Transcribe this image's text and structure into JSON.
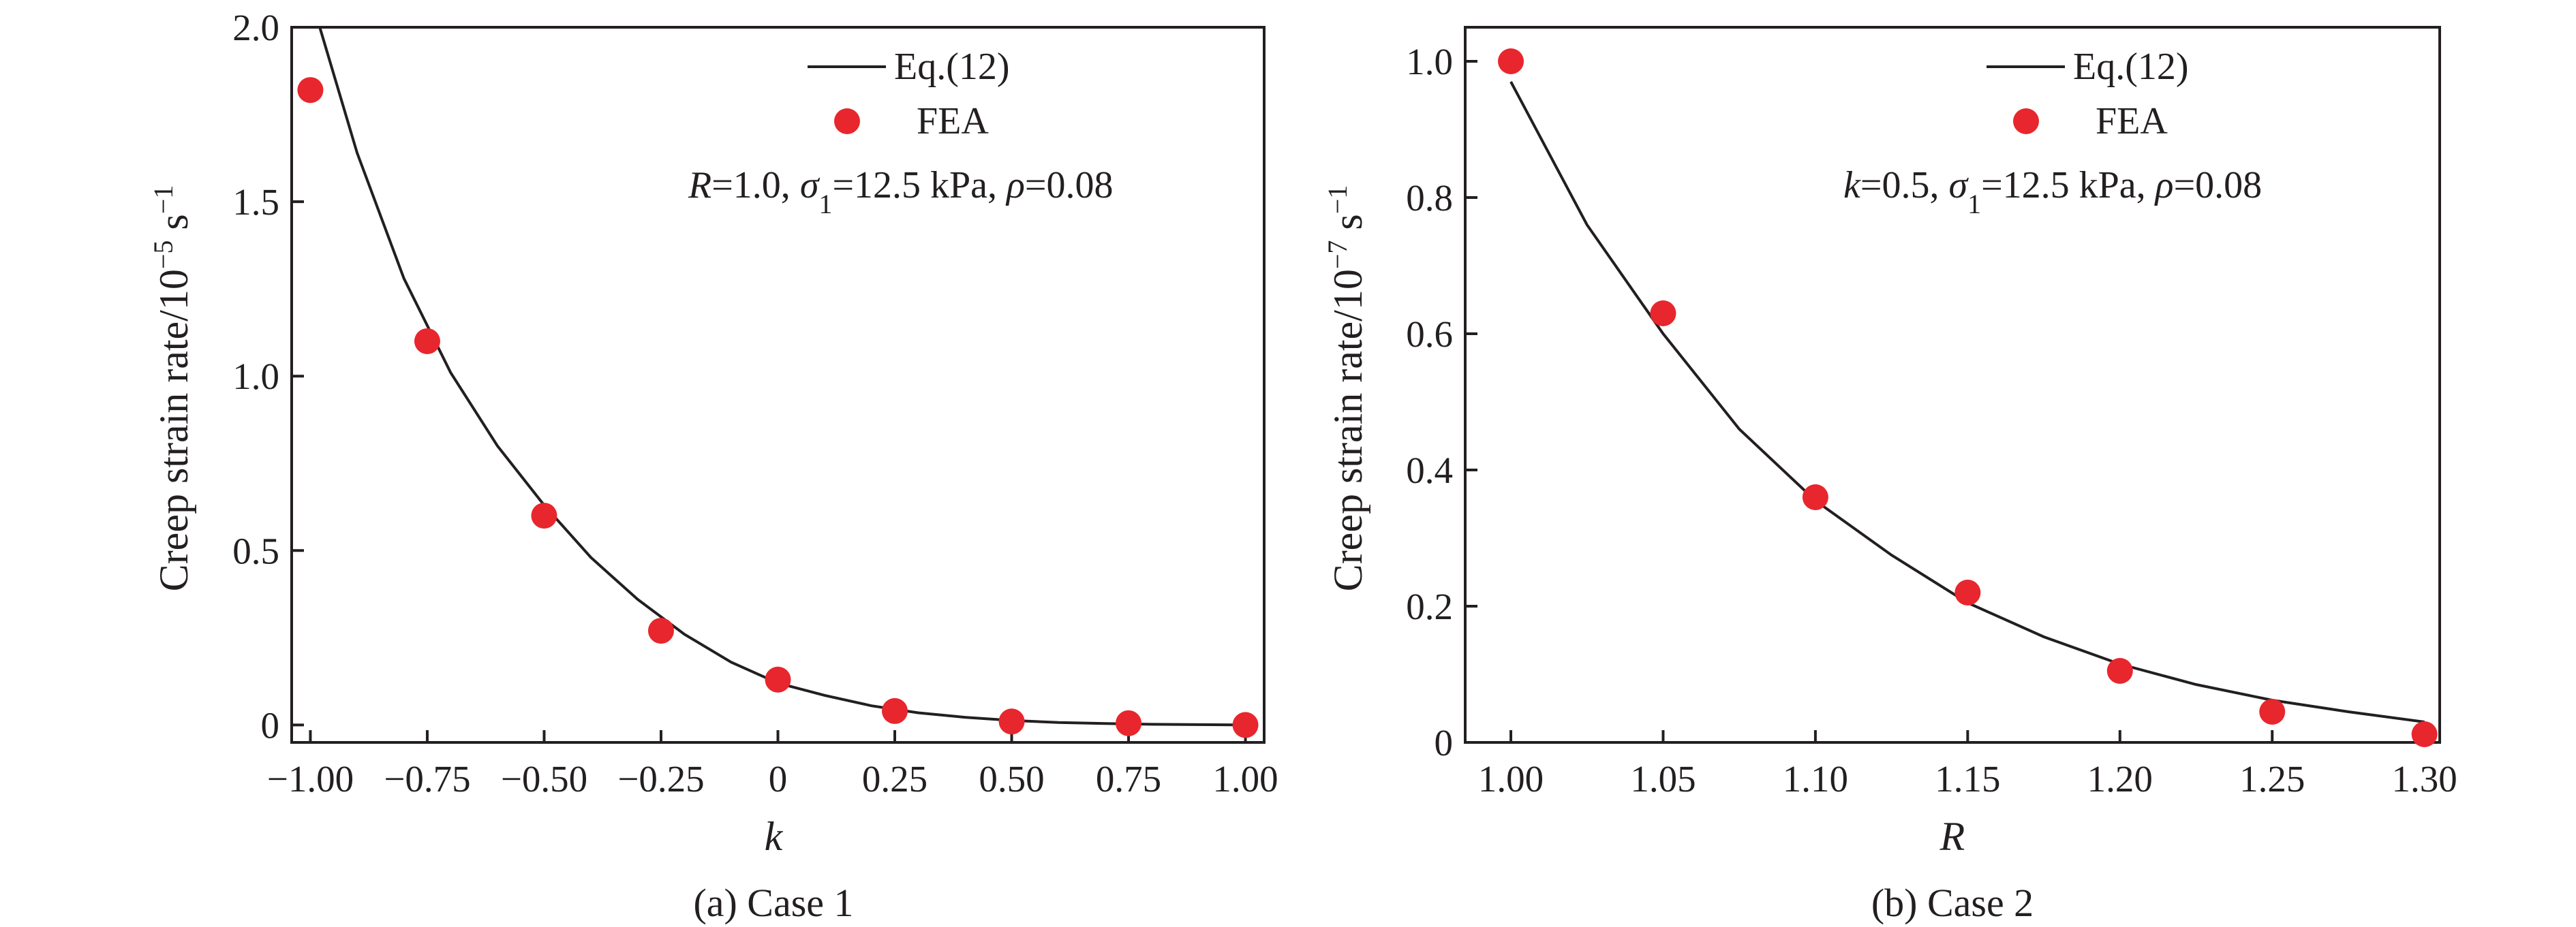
{
  "colors": {
    "fea": "#e8262d",
    "line": "#231f20"
  },
  "chart_data": [
    {
      "type": "scatter",
      "caption": "(a) Case 1",
      "xlabel": "k",
      "ylabel_main": "Creep strain rate/10",
      "ylabel_exp": "−5",
      "ylabel_unit": " s",
      "ylabel_unit_exp": "−1",
      "xlim": [
        -1.04,
        1.04
      ],
      "ylim": [
        -0.05,
        2.0
      ],
      "xticks": [
        -1.0,
        -0.75,
        -0.5,
        -0.25,
        0,
        0.25,
        0.5,
        0.75,
        1.0
      ],
      "xtick_labels": [
        "−1.00",
        "−0.75",
        "−0.50",
        "−0.25",
        "0",
        "0.25",
        "0.50",
        "0.75",
        "1.00"
      ],
      "yticks": [
        0,
        0.5,
        1.0,
        1.5,
        2.0
      ],
      "ytick_labels": [
        "0",
        "0.5",
        "1.0",
        "1.5",
        "2.0"
      ],
      "legend": {
        "line": "Eq.(12)",
        "points": "FEA",
        "placement": "top-right"
      },
      "params": [
        "R",
        "=1.0, ",
        "σ",
        "1",
        "=12.5 kPa, ",
        "ρ",
        "=0.08"
      ],
      "series": [
        {
          "name": "FEA",
          "style": "points",
          "x": [
            -1.0,
            -0.75,
            -0.5,
            -0.25,
            0,
            0.25,
            0.5,
            0.75,
            1.0
          ],
          "y": [
            1.82,
            1.1,
            0.6,
            0.27,
            0.13,
            0.04,
            0.01,
            0.005,
            0.0
          ]
        },
        {
          "name": "Eq.(12)",
          "style": "line",
          "x": [
            -0.98,
            -0.9,
            -0.8,
            -0.7,
            -0.6,
            -0.5,
            -0.4,
            -0.3,
            -0.2,
            -0.1,
            0,
            0.1,
            0.2,
            0.3,
            0.4,
            0.5,
            0.6,
            0.7,
            0.8,
            0.9,
            1.0
          ],
          "y": [
            2.0,
            1.64,
            1.28,
            1.01,
            0.8,
            0.63,
            0.48,
            0.36,
            0.26,
            0.18,
            0.12,
            0.085,
            0.055,
            0.035,
            0.022,
            0.013,
            0.007,
            0.004,
            0.002,
            0.001,
            0.0
          ]
        }
      ]
    },
    {
      "type": "scatter",
      "caption": "(b) Case 2",
      "xlabel": "R",
      "ylabel_main": "Creep strain rate/10",
      "ylabel_exp": "−7",
      "ylabel_unit": " s",
      "ylabel_unit_exp": "−1",
      "xlim": [
        0.985,
        1.305
      ],
      "ylim": [
        0,
        1.05
      ],
      "xticks": [
        1.0,
        1.05,
        1.1,
        1.15,
        1.2,
        1.25,
        1.3
      ],
      "xtick_labels": [
        "1.00",
        "1.05",
        "1.10",
        "1.15",
        "1.20",
        "1.25",
        "1.30"
      ],
      "yticks": [
        0,
        0.2,
        0.4,
        0.6,
        0.8,
        1.0
      ],
      "ytick_labels": [
        "0",
        "0.2",
        "0.4",
        "0.6",
        "0.8",
        "1.0"
      ],
      "legend": {
        "line": "Eq.(12)",
        "points": "FEA",
        "placement": "top-right"
      },
      "params": [
        "k",
        "=0.5, ",
        "σ",
        "1",
        "=12.5 kPa, ",
        "ρ",
        "=0.08"
      ],
      "series": [
        {
          "name": "FEA",
          "style": "points",
          "x": [
            1.0,
            1.05,
            1.1,
            1.15,
            1.2,
            1.25,
            1.3
          ],
          "y": [
            1.0,
            0.63,
            0.36,
            0.22,
            0.105,
            0.045,
            0.012
          ]
        },
        {
          "name": "Eq.(12)",
          "style": "line",
          "x": [
            1.0,
            1.025,
            1.05,
            1.075,
            1.1,
            1.125,
            1.15,
            1.175,
            1.2,
            1.225,
            1.25,
            1.275,
            1.3
          ],
          "y": [
            0.97,
            0.76,
            0.6,
            0.46,
            0.355,
            0.275,
            0.205,
            0.155,
            0.115,
            0.085,
            0.062,
            0.045,
            0.03
          ]
        }
      ]
    }
  ]
}
